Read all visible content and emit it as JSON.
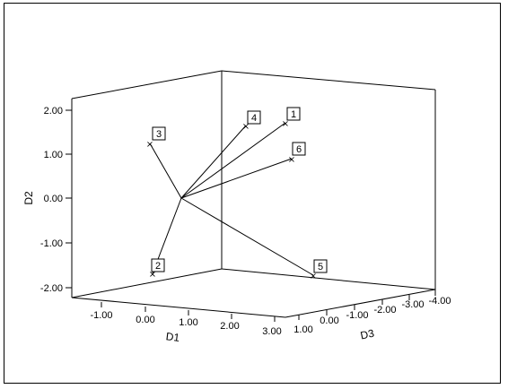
{
  "chart_data": {
    "type": "3d-scatter-biplot",
    "title": "",
    "axes": {
      "D1": {
        "label": "D1",
        "ticks": [
          "-1.00",
          "0.00",
          "1.00",
          "2.00",
          "3.00"
        ]
      },
      "D2": {
        "label": "D2",
        "ticks": [
          "2.00",
          "1.00",
          "0.00",
          "-1.00",
          "-2.00"
        ]
      },
      "D3": {
        "label": "D3",
        "ticks": [
          "1.00",
          "0.00",
          "-1.00",
          "-2.00",
          "-3.00",
          "-4.00"
        ]
      }
    },
    "center_point": "origin of vectors",
    "points": [
      {
        "label": "1",
        "x": 1.9,
        "y": 1.7,
        "z": 0.3
      },
      {
        "label": "2",
        "x": -0.3,
        "y": -1.7,
        "z": 0.6
      },
      {
        "label": "3",
        "x": -0.9,
        "y": 1.2,
        "z": 0.7
      },
      {
        "label": "4",
        "x": 1.3,
        "y": 1.6,
        "z": 0.1
      },
      {
        "label": "5",
        "x": 2.8,
        "y": -1.7,
        "z": -0.9
      },
      {
        "label": "6",
        "x": 2.1,
        "y": 0.9,
        "z": 0.2
      }
    ],
    "grid": false,
    "legend": "none"
  }
}
